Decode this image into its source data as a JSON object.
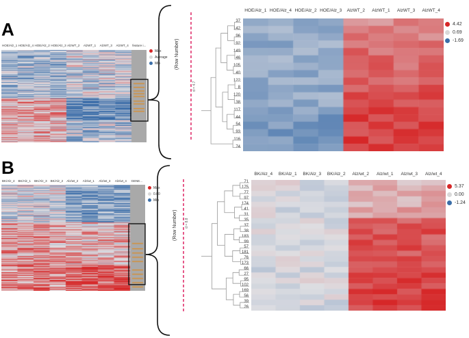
{
  "panel_a": {
    "letter": "A",
    "small": {
      "columns": [
        "HOE/Alz_1",
        "HOE/Alz_4",
        "HOE/Alz_2",
        "HOE/Alz_3",
        "AlzWT_2",
        "AlzWT_1",
        "AlzWT_3",
        "AlzWT_4",
        "feature i..."
      ],
      "legend": [
        {
          "label": "Max",
          "color": "#d62728"
        },
        {
          "label": "Average",
          "color": "#d9d9d9"
        },
        {
          "label": "Min",
          "color": "#3b6ea8"
        }
      ]
    },
    "zoom": {
      "row_axis_label": "(Row Number)",
      "threshold_label": "d = 4.7",
      "columns": [
        "HOE/Alz_1",
        "HOE/Alz_4",
        "HOE/Alz_2",
        "HOE/Alz_3",
        "AlzWT_2",
        "AlzWT_1",
        "AlzWT_3",
        "AlzWT_4"
      ],
      "rows": [
        "37",
        "142",
        "96",
        "92",
        "149",
        "46",
        "105",
        "40",
        "122",
        "8",
        "120",
        "38",
        "117",
        "44",
        "54",
        "93",
        "116",
        "74"
      ],
      "legend": [
        {
          "label": "4.42",
          "color": "#d62728"
        },
        {
          "label": "0.69",
          "color": "#d9d9d9"
        },
        {
          "label": "-1.69",
          "color": "#3b6ea8"
        }
      ]
    }
  },
  "panel_b": {
    "letter": "B",
    "small": {
      "columns": [
        "BK/Alz_4",
        "BK/Alz_1",
        "BK/Alz_3",
        "BK/Alz_2",
        "Alz/wt_2",
        "Alz/wt_1",
        "Alz/wt_3",
        "Alz/wt_4",
        "GENE..."
      ],
      "legend": [
        {
          "label": "Max",
          "color": "#d62728"
        },
        {
          "label": "0.00",
          "color": "#d9d9d9"
        },
        {
          "label": "Min",
          "color": "#3b6ea8"
        }
      ]
    },
    "zoom": {
      "row_axis_label": "(Row Number)",
      "threshold_label": "d = 8.8",
      "columns": [
        "BK/Alz_4",
        "BK/Alz_1",
        "BK/Alz_3",
        "BK/Alz_2",
        "Alz/wt_2",
        "Alz/wt_1",
        "Alz/wt_3",
        "Alz/wt_4"
      ],
      "rows": [
        "71",
        "175",
        "77",
        "97",
        "174",
        "41",
        "31",
        "35",
        "37",
        "38",
        "183",
        "99",
        "57",
        "181",
        "76",
        "173",
        "66",
        "27",
        "95",
        "102",
        "169",
        "56",
        "39",
        "26"
      ],
      "legend": [
        {
          "label": "5.37",
          "color": "#d62728"
        },
        {
          "label": "0.00",
          "color": "#d9d9d9"
        },
        {
          "label": "-1.24",
          "color": "#3b6ea8"
        }
      ]
    }
  }
}
